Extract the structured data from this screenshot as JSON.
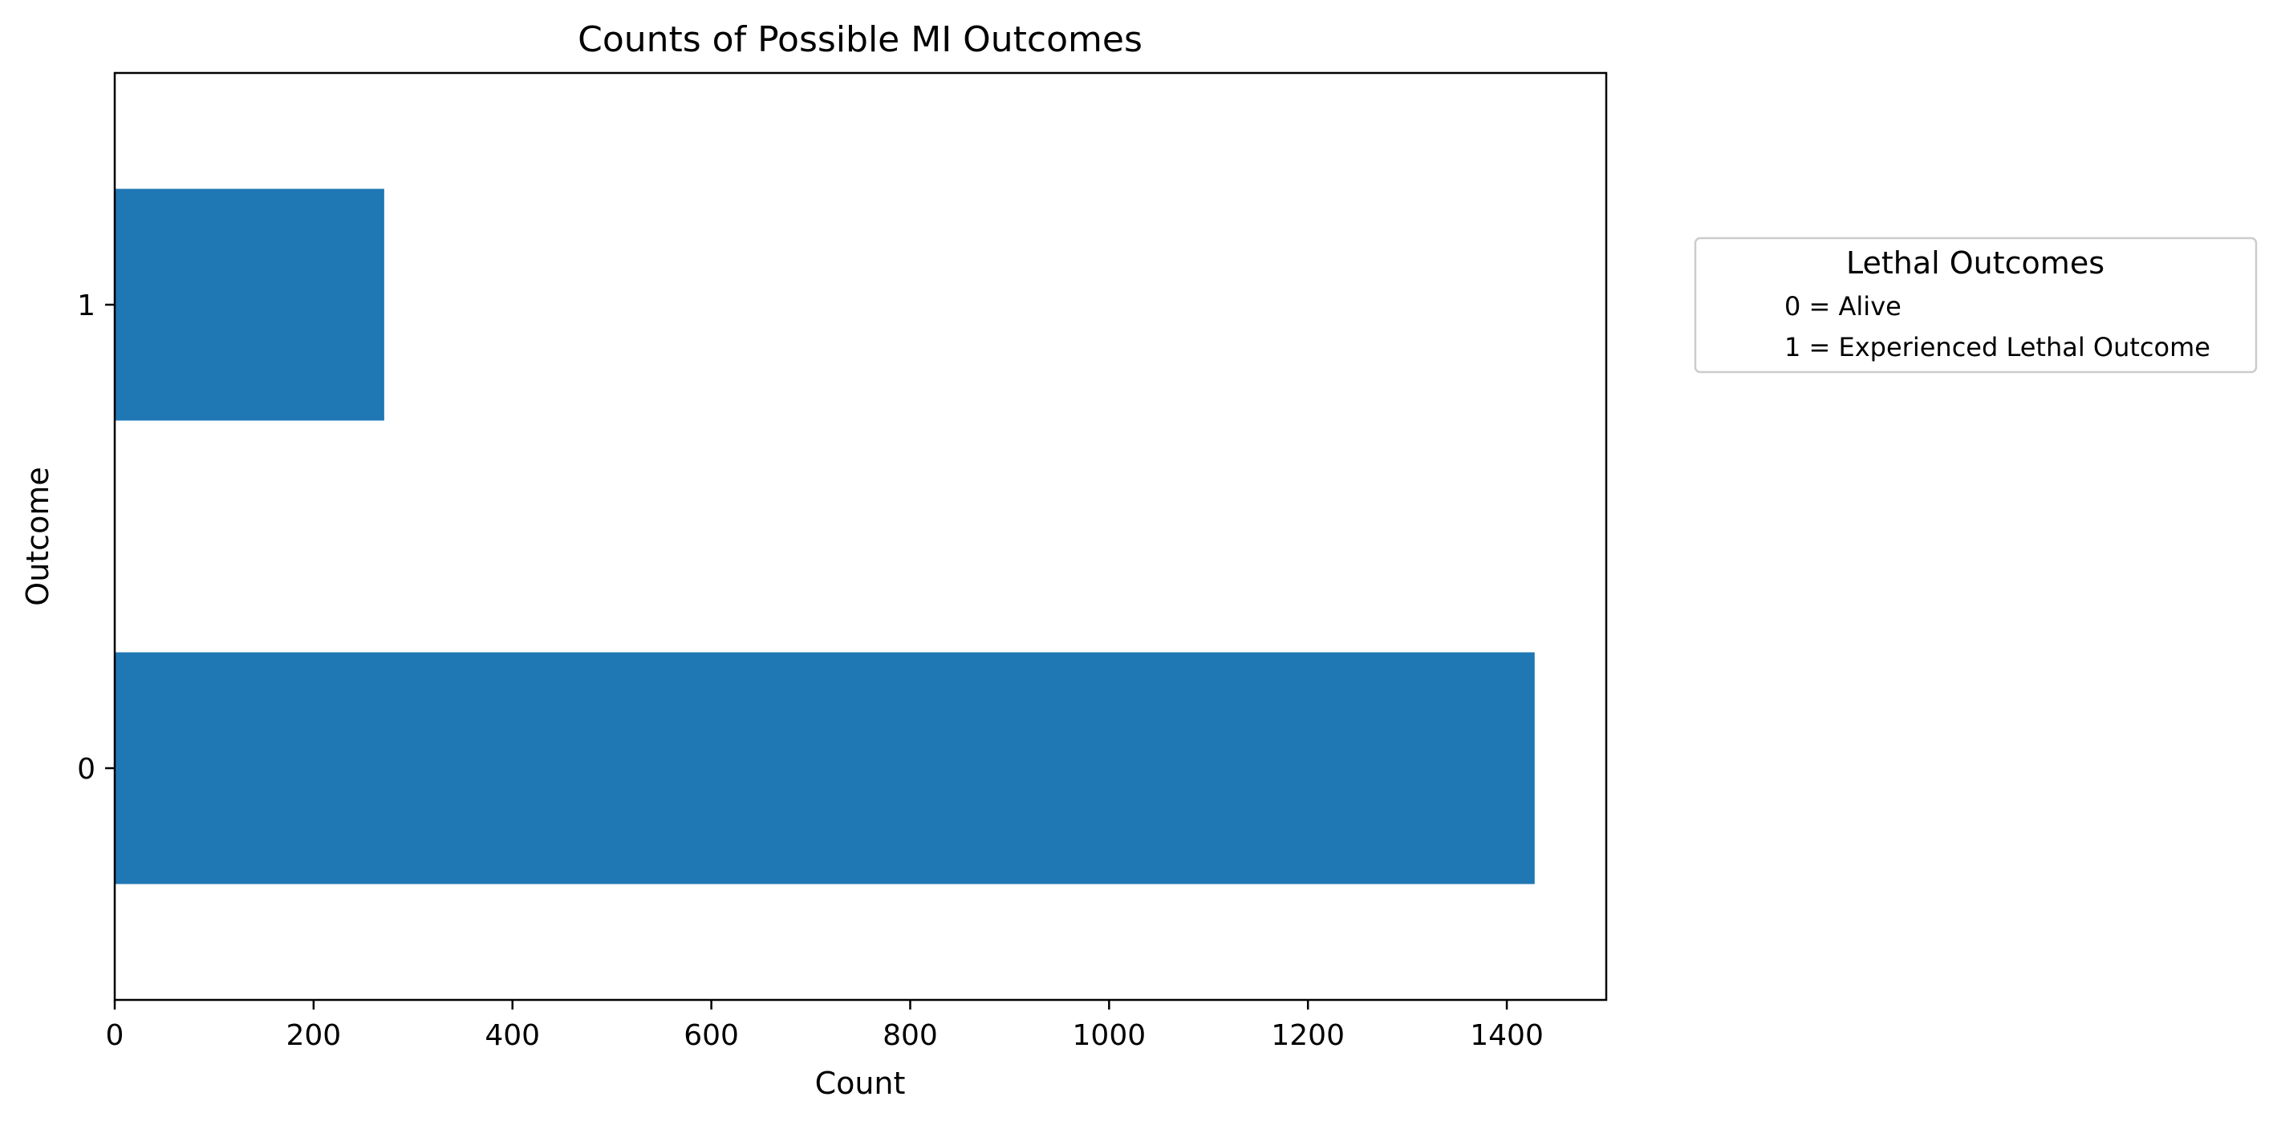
{
  "chart_data": {
    "type": "bar",
    "orientation": "horizontal",
    "title": "Counts of Possible MI Outcomes",
    "xlabel": "Count",
    "ylabel": "Outcome",
    "categories": [
      "0",
      "1"
    ],
    "values": [
      1428,
      271
    ],
    "xlim": [
      0,
      1500
    ],
    "xticks": [
      0,
      200,
      400,
      600,
      800,
      1000,
      1200,
      1400
    ],
    "grid": false,
    "bar_color": "#1f77b4",
    "legend": {
      "title": "Lethal Outcomes",
      "placement": "outside-right-upper",
      "entries": [
        "0 = Alive",
        "1 = Experienced Lethal Outcome"
      ]
    }
  }
}
